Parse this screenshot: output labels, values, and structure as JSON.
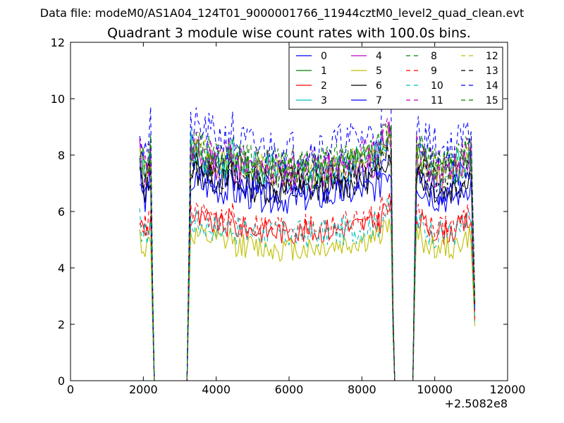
{
  "chart_data": {
    "type": "line",
    "suptitle": "Data file: modeM0/AS1A04_124T01_9000001766_11944cztM0_level2_quad_clean.evt",
    "title": "Quadrant 3 module wise count rates with 100.0s bins.",
    "xlabel": "",
    "ylabel": "",
    "x_offset_label": "+2.5082e8",
    "xlim": [
      0,
      12000
    ],
    "ylim": [
      0,
      12
    ],
    "x_ticks": [
      "0",
      "2000",
      "4000",
      "6000",
      "8000",
      "10000",
      "12000"
    ],
    "y_ticks": [
      "0",
      "2",
      "4",
      "6",
      "8",
      "10",
      "12"
    ],
    "legend_position": "top-right",
    "legend_columns": 4,
    "segments": [
      {
        "start": 1900,
        "end": 2200
      },
      {
        "start": 3300,
        "end": 8800
      },
      {
        "start": 9500,
        "end": 11000
      }
    ],
    "gap_points": [
      2300,
      3200,
      8900,
      9400
    ],
    "drop_points": [
      2250,
      3250,
      8850,
      9450,
      11100
    ],
    "series": [
      {
        "name": "0",
        "color": "#0000ff",
        "dash": false,
        "level": 7.1,
        "shape": 0.8,
        "noise": 0.22
      },
      {
        "name": "1",
        "color": "#008000",
        "dash": false,
        "level": 7.5,
        "shape": 0.6,
        "noise": 0.2
      },
      {
        "name": "2",
        "color": "#ff0000",
        "dash": false,
        "level": 5.4,
        "shape": 0.4,
        "noise": 0.15
      },
      {
        "name": "3",
        "color": "#00bfbf",
        "dash": false,
        "level": 7.6,
        "shape": 0.7,
        "noise": 0.22
      },
      {
        "name": "4",
        "color": "#bf00bf",
        "dash": false,
        "level": 7.5,
        "shape": 0.6,
        "noise": 0.22
      },
      {
        "name": "5",
        "color": "#bfbf00",
        "dash": false,
        "level": 4.8,
        "shape": 0.4,
        "noise": 0.15
      },
      {
        "name": "6",
        "color": "#000000",
        "dash": false,
        "level": 6.9,
        "shape": 0.6,
        "noise": 0.18
      },
      {
        "name": "7",
        "color": "#0000ff",
        "dash": false,
        "level": 6.6,
        "shape": 0.5,
        "noise": 0.18
      },
      {
        "name": "8",
        "color": "#008000",
        "dash": true,
        "level": 7.9,
        "shape": 0.6,
        "noise": 0.18
      },
      {
        "name": "9",
        "color": "#ff0000",
        "dash": true,
        "level": 5.6,
        "shape": 0.4,
        "noise": 0.15
      },
      {
        "name": "10",
        "color": "#00bfbf",
        "dash": true,
        "level": 5.3,
        "shape": 0.4,
        "noise": 0.18
      },
      {
        "name": "11",
        "color": "#bf00bf",
        "dash": true,
        "level": 7.8,
        "shape": 0.6,
        "noise": 0.2
      },
      {
        "name": "12",
        "color": "#bfbf00",
        "dash": true,
        "level": 7.6,
        "shape": 0.6,
        "noise": 0.2
      },
      {
        "name": "13",
        "color": "#000000",
        "dash": true,
        "level": 7.2,
        "shape": 0.5,
        "noise": 0.18
      },
      {
        "name": "14",
        "color": "#0000ff",
        "dash": true,
        "level": 8.4,
        "shape": 0.7,
        "noise": 0.25
      },
      {
        "name": "15",
        "color": "#008000",
        "dash": true,
        "level": 7.8,
        "shape": 0.6,
        "noise": 0.2
      }
    ]
  }
}
